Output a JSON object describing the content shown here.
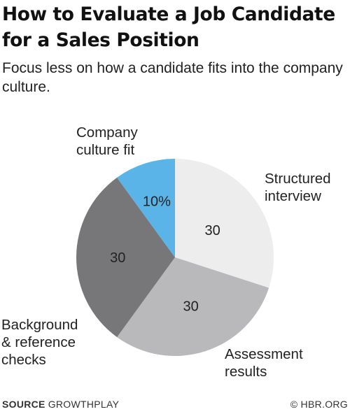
{
  "title": "How to Evaluate a Job Candidate for a Sales Position",
  "subtitle": "Focus less on how a candidate fits into the company culture.",
  "chart_data": {
    "type": "pie",
    "slices": [
      {
        "label": "Structured interview",
        "value": 30,
        "display": "30",
        "color": "#ededed"
      },
      {
        "label": "Assessment results",
        "value": 30,
        "display": "30",
        "color": "#b9b9bb"
      },
      {
        "label": "Background & reference checks",
        "value": 30,
        "display": "30",
        "color": "#77777a"
      },
      {
        "label": "Company culture fit",
        "value": 10,
        "display": "10%",
        "color": "#5ab4e8"
      }
    ],
    "start": "12 o'clock",
    "direction": "clockwise"
  },
  "footer": {
    "source_label": "SOURCE",
    "source": "GROWTHPLAY",
    "credit": "© HBR.ORG"
  }
}
